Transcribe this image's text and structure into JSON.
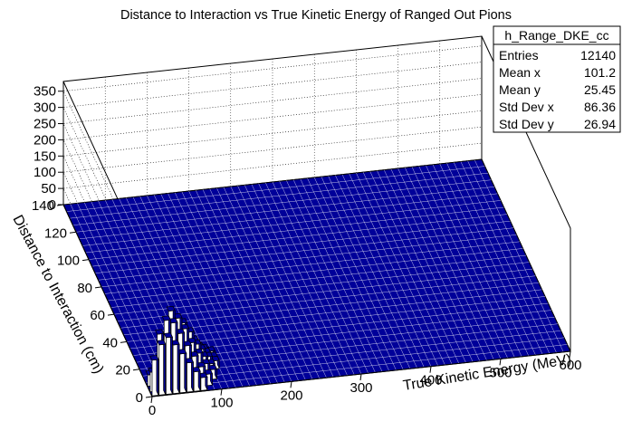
{
  "chart_data": {
    "type": "lego",
    "title": "Distance to Interaction vs True Kinetic Energy of Ranged Out Pions",
    "xlabel": "True Kinetic Energy (MeV)",
    "ylabel": "Distance to Interaction (cm)",
    "x_ticks": [
      "0",
      "100",
      "200",
      "300",
      "400",
      "500",
      "600"
    ],
    "y_ticks": [
      "0",
      "20",
      "40",
      "60",
      "80",
      "100",
      "120",
      "140"
    ],
    "z_ticks": [
      "0",
      "50",
      "100",
      "150",
      "200",
      "250",
      "300",
      "350"
    ],
    "xlim": [
      0,
      600
    ],
    "ylim": [
      0,
      140
    ],
    "zlim": [
      0,
      380
    ],
    "grid": true,
    "fill_color": "#000099",
    "stats": {
      "name": "h_Range_DKE_cc",
      "rows": [
        {
          "label": "Entries",
          "value": "12140"
        },
        {
          "label": "Mean x",
          "value": "101.2"
        },
        {
          "label": "Mean y",
          "value": "25.45"
        },
        {
          "label": "Std Dev x",
          "value": "86.36"
        },
        {
          "label": "Std Dev y",
          "value": "26.94"
        }
      ]
    },
    "bars": [
      {
        "x": 5,
        "y": 2,
        "z": 110
      },
      {
        "x": 5,
        "y": 5,
        "z": 60
      },
      {
        "x": 5,
        "y": 9,
        "z": 35
      },
      {
        "x": 15,
        "y": 2,
        "z": 155
      },
      {
        "x": 15,
        "y": 5,
        "z": 175
      },
      {
        "x": 15,
        "y": 9,
        "z": 75
      },
      {
        "x": 25,
        "y": 2,
        "z": 175
      },
      {
        "x": 25,
        "y": 5,
        "z": 215
      },
      {
        "x": 25,
        "y": 9,
        "z": 150
      },
      {
        "x": 25,
        "y": 12,
        "z": 60
      },
      {
        "x": 35,
        "y": 2,
        "z": 150
      },
      {
        "x": 35,
        "y": 5,
        "z": 205
      },
      {
        "x": 35,
        "y": 9,
        "z": 225
      },
      {
        "x": 35,
        "y": 12,
        "z": 140
      },
      {
        "x": 35,
        "y": 16,
        "z": 45
      },
      {
        "x": 45,
        "y": 2,
        "z": 120
      },
      {
        "x": 45,
        "y": 5,
        "z": 170
      },
      {
        "x": 45,
        "y": 9,
        "z": 200
      },
      {
        "x": 45,
        "y": 12,
        "z": 180
      },
      {
        "x": 45,
        "y": 16,
        "z": 90
      },
      {
        "x": 55,
        "y": 2,
        "z": 90
      },
      {
        "x": 55,
        "y": 5,
        "z": 130
      },
      {
        "x": 55,
        "y": 9,
        "z": 165
      },
      {
        "x": 55,
        "y": 12,
        "z": 170
      },
      {
        "x": 55,
        "y": 16,
        "z": 120
      },
      {
        "x": 55,
        "y": 19,
        "z": 55
      },
      {
        "x": 65,
        "y": 2,
        "z": 60
      },
      {
        "x": 65,
        "y": 5,
        "z": 95
      },
      {
        "x": 65,
        "y": 9,
        "z": 120
      },
      {
        "x": 65,
        "y": 12,
        "z": 140
      },
      {
        "x": 65,
        "y": 16,
        "z": 120
      },
      {
        "x": 65,
        "y": 19,
        "z": 80
      },
      {
        "x": 65,
        "y": 23,
        "z": 40
      },
      {
        "x": 75,
        "y": 2,
        "z": 40
      },
      {
        "x": 75,
        "y": 5,
        "z": 60
      },
      {
        "x": 75,
        "y": 9,
        "z": 85
      },
      {
        "x": 75,
        "y": 12,
        "z": 100
      },
      {
        "x": 75,
        "y": 16,
        "z": 95
      },
      {
        "x": 75,
        "y": 19,
        "z": 80
      },
      {
        "x": 75,
        "y": 23,
        "z": 55
      },
      {
        "x": 85,
        "y": 5,
        "z": 35
      },
      {
        "x": 85,
        "y": 9,
        "z": 50
      },
      {
        "x": 85,
        "y": 12,
        "z": 60
      },
      {
        "x": 85,
        "y": 16,
        "z": 65
      },
      {
        "x": 85,
        "y": 19,
        "z": 60
      },
      {
        "x": 85,
        "y": 23,
        "z": 50
      },
      {
        "x": 95,
        "y": 9,
        "z": 30
      },
      {
        "x": 95,
        "y": 12,
        "z": 35
      },
      {
        "x": 95,
        "y": 16,
        "z": 40
      },
      {
        "x": 95,
        "y": 19,
        "z": 40
      },
      {
        "x": 95,
        "y": 23,
        "z": 35
      },
      {
        "x": 105,
        "y": 16,
        "z": 25
      },
      {
        "x": 105,
        "y": 19,
        "z": 25
      },
      {
        "x": 105,
        "y": 23,
        "z": 25
      }
    ]
  }
}
